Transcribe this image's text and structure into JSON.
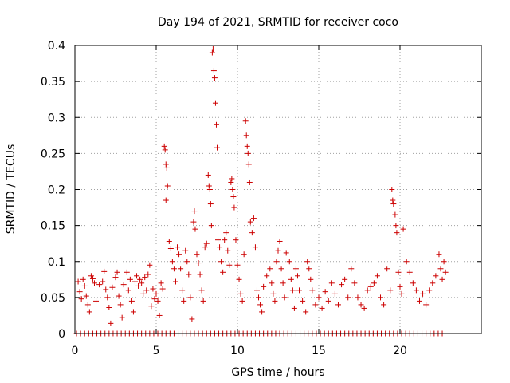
{
  "chart_data": {
    "type": "scatter",
    "title": "Day 194 of 2021, SRMTID for receiver coco",
    "xlabel": "GPS time / hours",
    "ylabel": "SRMTID / TECUs",
    "xlim": [
      0,
      25
    ],
    "ylim": [
      0,
      0.4
    ],
    "xticks": [
      0,
      5,
      10,
      15,
      20
    ],
    "xtick_labels": [
      "0",
      "5",
      "10",
      "15",
      "20"
    ],
    "yticks": [
      0,
      0.05,
      0.1,
      0.15,
      0.2,
      0.25,
      0.3,
      0.35,
      0.4
    ],
    "ytick_labels": [
      "0",
      "0.05",
      "0.1",
      "0.15",
      "0.2",
      "0.25",
      "0.3",
      "0.35",
      "0.4"
    ],
    "grid": true,
    "marker": "+",
    "series": [
      {
        "name": "SRMTID",
        "color": "#cc0000",
        "baseline": {
          "x_start": 0.1,
          "x_end": 22.8,
          "step": 0.25,
          "y": 0
        },
        "points": [
          [
            0.2,
            0.072
          ],
          [
            0.3,
            0.058
          ],
          [
            0.4,
            0.048
          ],
          [
            0.5,
            0.075
          ],
          [
            0.6,
            0.066
          ],
          [
            0.7,
            0.052
          ],
          [
            0.8,
            0.04
          ],
          [
            0.9,
            0.03
          ],
          [
            1.0,
            0.08
          ],
          [
            1.1,
            0.076
          ],
          [
            1.2,
            0.07
          ],
          [
            1.3,
            0.045
          ],
          [
            1.5,
            0.068
          ],
          [
            1.7,
            0.072
          ],
          [
            1.8,
            0.086
          ],
          [
            1.9,
            0.061
          ],
          [
            2.0,
            0.05
          ],
          [
            2.1,
            0.036
          ],
          [
            2.2,
            0.014
          ],
          [
            2.3,
            0.064
          ],
          [
            2.5,
            0.078
          ],
          [
            2.6,
            0.085
          ],
          [
            2.7,
            0.052
          ],
          [
            2.8,
            0.04
          ],
          [
            2.9,
            0.022
          ],
          [
            3.0,
            0.068
          ],
          [
            3.2,
            0.085
          ],
          [
            3.3,
            0.06
          ],
          [
            3.4,
            0.075
          ],
          [
            3.5,
            0.045
          ],
          [
            3.6,
            0.03
          ],
          [
            3.7,
            0.072
          ],
          [
            3.8,
            0.08
          ],
          [
            3.9,
            0.066
          ],
          [
            4.0,
            0.075
          ],
          [
            4.1,
            0.07
          ],
          [
            4.2,
            0.055
          ],
          [
            4.3,
            0.078
          ],
          [
            4.4,
            0.06
          ],
          [
            4.5,
            0.082
          ],
          [
            4.6,
            0.095
          ],
          [
            4.7,
            0.038
          ],
          [
            4.8,
            0.062
          ],
          [
            4.9,
            0.048
          ],
          [
            5.0,
            0.055
          ],
          [
            5.1,
            0.045
          ],
          [
            5.2,
            0.025
          ],
          [
            5.3,
            0.07
          ],
          [
            5.4,
            0.062
          ],
          [
            5.5,
            0.26
          ],
          [
            5.55,
            0.255
          ],
          [
            5.6,
            0.235
          ],
          [
            5.65,
            0.23
          ],
          [
            5.7,
            0.205
          ],
          [
            5.6,
            0.185
          ],
          [
            5.8,
            0.128
          ],
          [
            5.9,
            0.118
          ],
          [
            6.0,
            0.1
          ],
          [
            6.1,
            0.09
          ],
          [
            6.2,
            0.072
          ],
          [
            6.3,
            0.12
          ],
          [
            6.4,
            0.11
          ],
          [
            6.5,
            0.09
          ],
          [
            6.6,
            0.06
          ],
          [
            6.7,
            0.045
          ],
          [
            6.8,
            0.115
          ],
          [
            6.9,
            0.1
          ],
          [
            7.0,
            0.082
          ],
          [
            7.1,
            0.05
          ],
          [
            7.2,
            0.02
          ],
          [
            7.3,
            0.155
          ],
          [
            7.35,
            0.17
          ],
          [
            7.4,
            0.145
          ],
          [
            7.5,
            0.11
          ],
          [
            7.6,
            0.098
          ],
          [
            7.7,
            0.082
          ],
          [
            7.8,
            0.06
          ],
          [
            7.9,
            0.045
          ],
          [
            8.0,
            0.12
          ],
          [
            8.1,
            0.125
          ],
          [
            8.2,
            0.22
          ],
          [
            8.25,
            0.205
          ],
          [
            8.3,
            0.2
          ],
          [
            8.35,
            0.18
          ],
          [
            8.4,
            0.15
          ],
          [
            8.45,
            0.39
          ],
          [
            8.5,
            0.395
          ],
          [
            8.55,
            0.365
          ],
          [
            8.6,
            0.355
          ],
          [
            8.65,
            0.32
          ],
          [
            8.7,
            0.29
          ],
          [
            8.75,
            0.258
          ],
          [
            8.8,
            0.13
          ],
          [
            8.9,
            0.12
          ],
          [
            9.0,
            0.1
          ],
          [
            9.1,
            0.085
          ],
          [
            9.2,
            0.13
          ],
          [
            9.3,
            0.14
          ],
          [
            9.4,
            0.115
          ],
          [
            9.5,
            0.095
          ],
          [
            9.6,
            0.21
          ],
          [
            9.65,
            0.215
          ],
          [
            9.7,
            0.2
          ],
          [
            9.75,
            0.19
          ],
          [
            9.8,
            0.175
          ],
          [
            9.9,
            0.13
          ],
          [
            10.0,
            0.095
          ],
          [
            10.1,
            0.075
          ],
          [
            10.2,
            0.055
          ],
          [
            10.3,
            0.045
          ],
          [
            10.4,
            0.11
          ],
          [
            10.5,
            0.295
          ],
          [
            10.55,
            0.275
          ],
          [
            10.6,
            0.26
          ],
          [
            10.65,
            0.25
          ],
          [
            10.7,
            0.235
          ],
          [
            10.75,
            0.21
          ],
          [
            10.8,
            0.155
          ],
          [
            10.9,
            0.14
          ],
          [
            11.0,
            0.16
          ],
          [
            11.1,
            0.12
          ],
          [
            11.2,
            0.06
          ],
          [
            11.3,
            0.05
          ],
          [
            11.4,
            0.04
          ],
          [
            11.5,
            0.03
          ],
          [
            11.6,
            0.065
          ],
          [
            11.8,
            0.08
          ],
          [
            12.0,
            0.09
          ],
          [
            12.1,
            0.07
          ],
          [
            12.2,
            0.055
          ],
          [
            12.3,
            0.045
          ],
          [
            12.4,
            0.1
          ],
          [
            12.5,
            0.115
          ],
          [
            12.6,
            0.128
          ],
          [
            12.7,
            0.09
          ],
          [
            12.8,
            0.07
          ],
          [
            12.9,
            0.05
          ],
          [
            13.0,
            0.112
          ],
          [
            13.2,
            0.1
          ],
          [
            13.3,
            0.075
          ],
          [
            13.4,
            0.06
          ],
          [
            13.5,
            0.035
          ],
          [
            13.6,
            0.09
          ],
          [
            13.7,
            0.08
          ],
          [
            13.8,
            0.06
          ],
          [
            14.0,
            0.045
          ],
          [
            14.2,
            0.03
          ],
          [
            14.3,
            0.1
          ],
          [
            14.4,
            0.09
          ],
          [
            14.5,
            0.075
          ],
          [
            14.6,
            0.06
          ],
          [
            14.8,
            0.04
          ],
          [
            15.0,
            0.05
          ],
          [
            15.2,
            0.035
          ],
          [
            15.4,
            0.058
          ],
          [
            15.6,
            0.045
          ],
          [
            15.8,
            0.07
          ],
          [
            16.0,
            0.055
          ],
          [
            16.2,
            0.04
          ],
          [
            16.4,
            0.068
          ],
          [
            16.6,
            0.075
          ],
          [
            16.8,
            0.05
          ],
          [
            17.0,
            0.09
          ],
          [
            17.2,
            0.07
          ],
          [
            17.4,
            0.05
          ],
          [
            17.6,
            0.04
          ],
          [
            17.8,
            0.035
          ],
          [
            18.0,
            0.06
          ],
          [
            18.2,
            0.065
          ],
          [
            18.4,
            0.07
          ],
          [
            18.6,
            0.08
          ],
          [
            18.8,
            0.05
          ],
          [
            19.0,
            0.04
          ],
          [
            19.2,
            0.09
          ],
          [
            19.4,
            0.06
          ],
          [
            19.5,
            0.2
          ],
          [
            19.55,
            0.185
          ],
          [
            19.6,
            0.18
          ],
          [
            19.7,
            0.165
          ],
          [
            19.75,
            0.15
          ],
          [
            19.8,
            0.14
          ],
          [
            19.9,
            0.085
          ],
          [
            20.0,
            0.065
          ],
          [
            20.1,
            0.055
          ],
          [
            20.2,
            0.145
          ],
          [
            20.4,
            0.1
          ],
          [
            20.6,
            0.085
          ],
          [
            20.8,
            0.07
          ],
          [
            21.0,
            0.06
          ],
          [
            21.2,
            0.045
          ],
          [
            21.4,
            0.055
          ],
          [
            21.6,
            0.04
          ],
          [
            21.8,
            0.06
          ],
          [
            22.0,
            0.07
          ],
          [
            22.2,
            0.08
          ],
          [
            22.4,
            0.11
          ],
          [
            22.5,
            0.09
          ],
          [
            22.6,
            0.075
          ],
          [
            22.7,
            0.1
          ],
          [
            22.8,
            0.085
          ]
        ]
      }
    ]
  }
}
